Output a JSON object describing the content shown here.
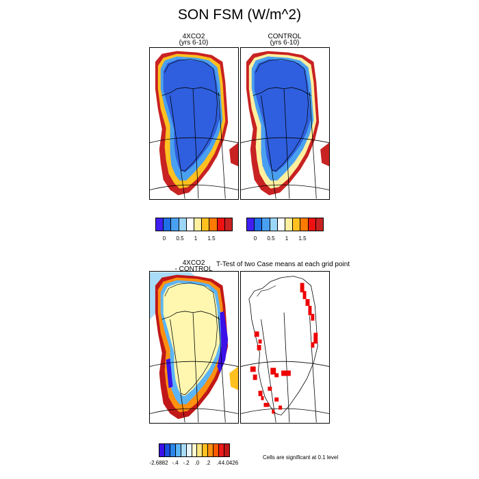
{
  "title": "SON FSM (W/m^2)",
  "panels": {
    "p1": {
      "line1": "4XCO2",
      "line2": "(yrs 6-10)"
    },
    "p2": {
      "line1": "CONTROL",
      "line2": "(yrs 6-10)"
    },
    "p3": {
      "line1": "4XCO2",
      "line2": "- CONTROL"
    },
    "p4": {
      "line1": "T-Test of two Case means at each grid point"
    }
  },
  "colorbar_top": {
    "colors": [
      "#3f1ff2",
      "#1f6fe6",
      "#4aa0f0",
      "#9bd6f6",
      "#ffffff",
      "#fff0a0",
      "#ffc020",
      "#ff7a00",
      "#ee1111",
      "#c82222"
    ],
    "ticks": [
      "0",
      "0.5",
      "1",
      "1.5"
    ]
  },
  "colorbar_bottom": {
    "colors": [
      "#3a10e8",
      "#1a4fe0",
      "#2b86ea",
      "#5cb4f4",
      "#a8dcf8",
      "#e8f6fc",
      "#fffad0",
      "#ffe680",
      "#ffc020",
      "#ff9010",
      "#ff5a00",
      "#ee1a1a",
      "#c01818"
    ],
    "ticks": [
      "-2.6882",
      "-.4",
      "-.2",
      ".0",
      ".2",
      ".4",
      "4.0426"
    ]
  },
  "note": "Cells are significant at 0.1 level",
  "colors": {
    "ice_blue": "#2f5fde",
    "yellow_pale": "#fff7b0",
    "significant_red": "#ee0000"
  }
}
